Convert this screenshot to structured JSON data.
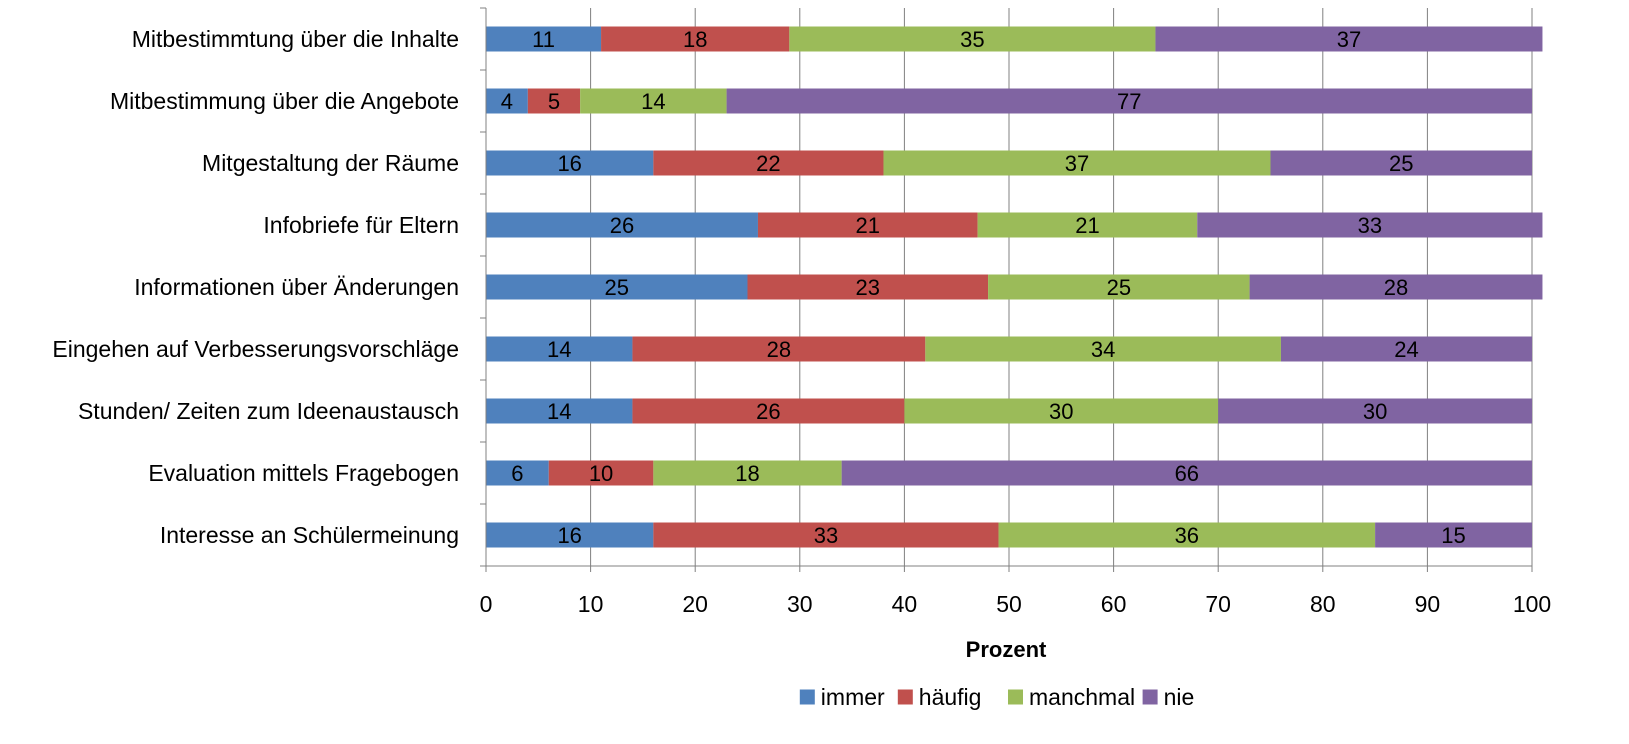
{
  "chart_data": {
    "type": "bar",
    "orientation": "horizontal",
    "stacked": true,
    "categories": [
      "Mitbestimmtung über die Inhalte",
      "Mitbestimmung über die Angebote",
      "Mitgestaltung der Räume",
      "Infobriefe für Eltern",
      "Informationen über Änderungen",
      "Eingehen auf Verbesserungsvorschläge",
      "Stunden/ Zeiten zum Ideenaustausch",
      "Evaluation mittels Fragebogen",
      "Interesse an Schülermeinung"
    ],
    "series": [
      {
        "name": "immer",
        "color": "#4F81BD",
        "values": [
          11,
          4,
          16,
          26,
          25,
          14,
          14,
          6,
          16
        ]
      },
      {
        "name": "häufig",
        "color": "#C0504D",
        "values": [
          18,
          5,
          22,
          21,
          23,
          28,
          26,
          10,
          33
        ]
      },
      {
        "name": "manchmal",
        "color": "#9BBB59",
        "values": [
          35,
          14,
          37,
          21,
          25,
          34,
          30,
          18,
          36
        ]
      },
      {
        "name": "nie",
        "color": "#8064A2",
        "values": [
          37,
          77,
          25,
          33,
          28,
          24,
          30,
          66,
          15
        ]
      }
    ],
    "xlabel": "Prozent",
    "ylabel": "",
    "title": "",
    "xlim": [
      0,
      100
    ],
    "xticks": [
      "0",
      "10",
      "20",
      "30",
      "40",
      "50",
      "60",
      "70",
      "80",
      "90",
      "100"
    ],
    "grid": "vertical",
    "legend_position": "bottom",
    "grid_color": "#808080"
  }
}
